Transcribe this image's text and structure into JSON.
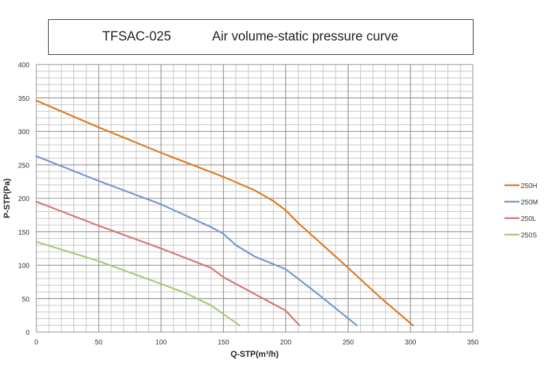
{
  "chart_data": {
    "type": "line",
    "title_model": "TFSAC-025",
    "title_desc": "Air volume-static pressure curve",
    "xlabel": "Q-STP(m³/h)",
    "ylabel": "P-STP(Pa)",
    "xlim": [
      0,
      350
    ],
    "ylim": [
      0,
      400
    ],
    "x_major_ticks": [
      0,
      50,
      100,
      150,
      200,
      250,
      300,
      350
    ],
    "y_major_ticks": [
      0,
      50,
      100,
      150,
      200,
      250,
      300,
      350,
      400
    ],
    "x_minor_step": 10,
    "y_minor_step": 10,
    "grid": true,
    "legend_position": "right",
    "series": [
      {
        "name": "250H",
        "color": "#e07a23",
        "points": [
          [
            0,
            346
          ],
          [
            50,
            306
          ],
          [
            100,
            268
          ],
          [
            150,
            232
          ],
          [
            175,
            212
          ],
          [
            190,
            196
          ],
          [
            200,
            182
          ],
          [
            210,
            163
          ],
          [
            225,
            138
          ],
          [
            250,
            96
          ],
          [
            275,
            53
          ],
          [
            302,
            10
          ]
        ]
      },
      {
        "name": "250M",
        "color": "#7897cf",
        "points": [
          [
            0,
            263
          ],
          [
            50,
            226
          ],
          [
            100,
            191
          ],
          [
            140,
            157
          ],
          [
            150,
            147
          ],
          [
            160,
            130
          ],
          [
            175,
            113
          ],
          [
            200,
            94
          ],
          [
            225,
            58
          ],
          [
            257,
            10
          ]
        ]
      },
      {
        "name": "250L",
        "color": "#d47876",
        "points": [
          [
            0,
            195
          ],
          [
            50,
            159
          ],
          [
            100,
            125
          ],
          [
            140,
            96
          ],
          [
            150,
            82
          ],
          [
            175,
            57
          ],
          [
            200,
            32
          ],
          [
            211,
            10
          ]
        ]
      },
      {
        "name": "250S",
        "color": "#a8c97a",
        "points": [
          [
            0,
            135
          ],
          [
            50,
            106
          ],
          [
            100,
            72
          ],
          [
            120,
            58
          ],
          [
            140,
            40
          ],
          [
            163,
            10
          ]
        ]
      }
    ]
  }
}
